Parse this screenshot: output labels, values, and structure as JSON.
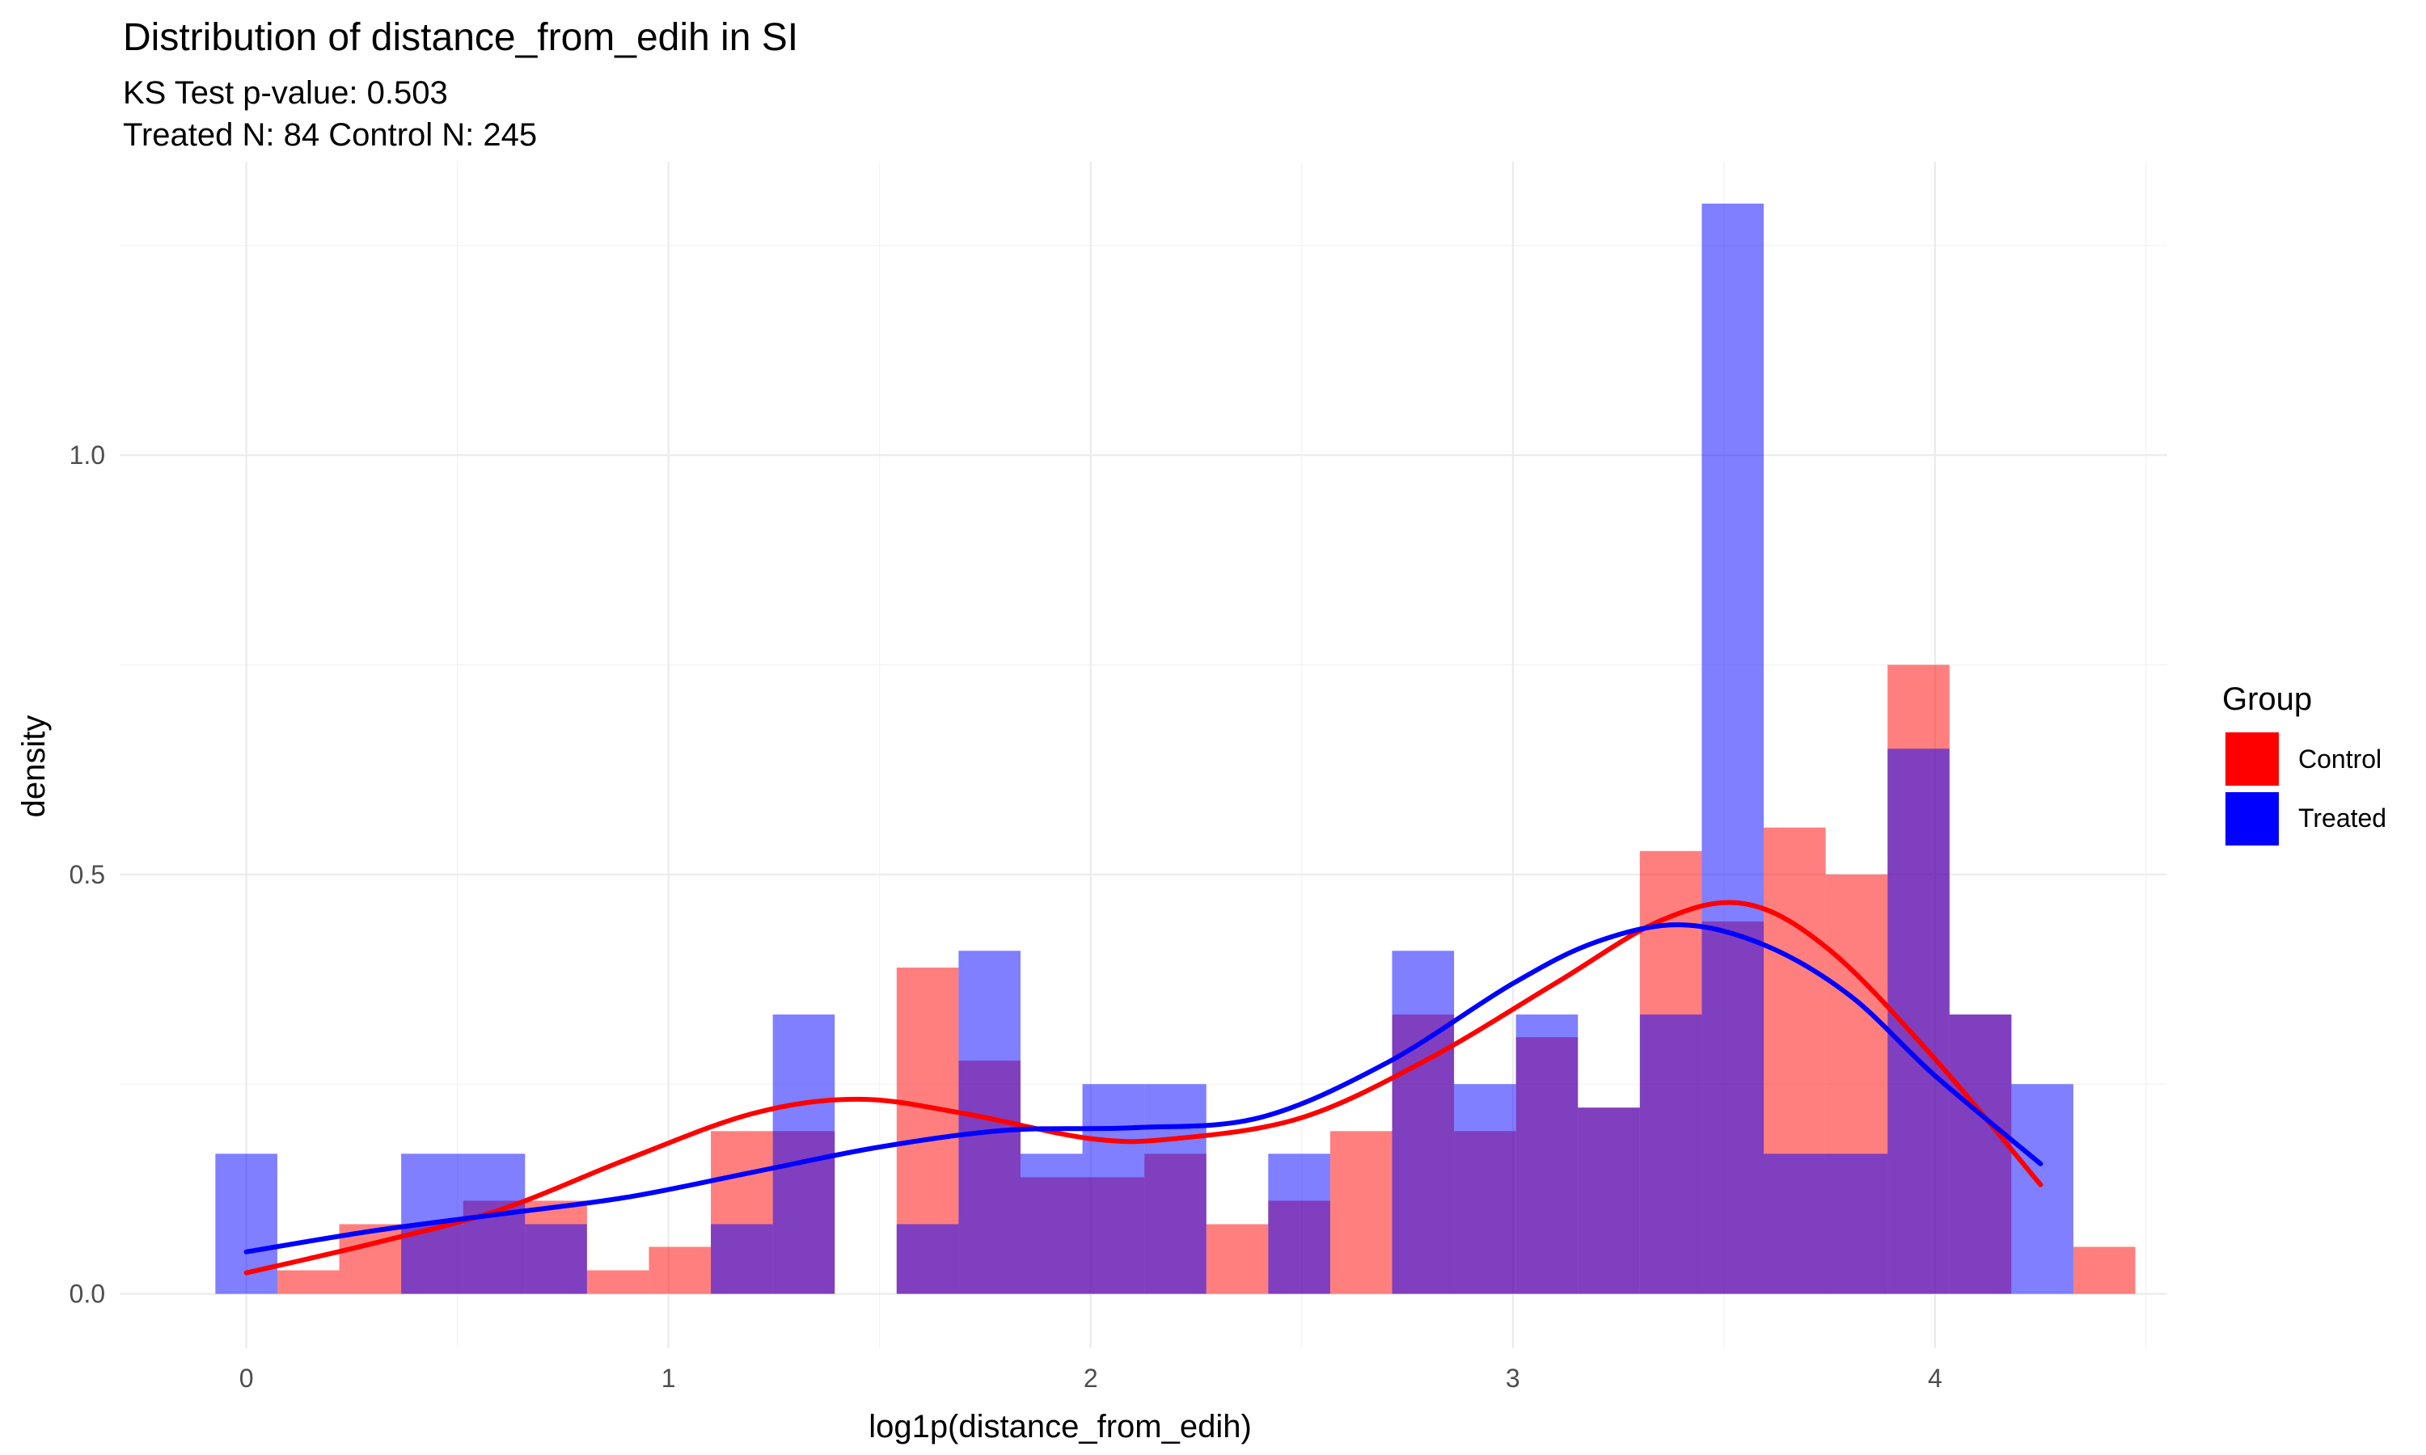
{
  "chart_data": {
    "type": "histogram",
    "title": "Distribution of distance_from_edih in SI",
    "subtitles": [
      "KS Test p-value: 0.503",
      "Treated N: 84 Control N: 245"
    ],
    "xlabel": "log1p(distance_from_edih)",
    "ylabel": "density",
    "xlim": [
      -0.3,
      4.55
    ],
    "ylim": [
      -0.065,
      1.35
    ],
    "x_ticks": [
      0,
      1,
      2,
      3,
      4
    ],
    "x_tick_labels": [
      "0",
      "1",
      "2",
      "3",
      "4"
    ],
    "y_ticks": [
      0.0,
      0.5,
      1.0
    ],
    "y_tick_labels": [
      "0.0",
      "0.5",
      "1.0"
    ],
    "grid": true,
    "legend": {
      "title": "Group",
      "position": "right"
    },
    "bin_width": 0.1467,
    "bin_start": -0.0733,
    "series": [
      {
        "name": "Control",
        "color": "#ff0000",
        "bin_densities": [
          0.0,
          0.028,
          0.083,
          0.083,
          0.111,
          0.111,
          0.028,
          0.056,
          0.194,
          0.194,
          0.0,
          0.389,
          0.278,
          0.139,
          0.139,
          0.167,
          0.083,
          0.111,
          0.194,
          0.333,
          0.194,
          0.306,
          0.222,
          0.528,
          0.444,
          0.556,
          0.5,
          0.75,
          0.333,
          0.0,
          0.056
        ],
        "density_curve": {
          "x": [
            0,
            0.3,
            0.6,
            0.9,
            1.2,
            1.45,
            1.7,
            2.0,
            2.2,
            2.5,
            2.8,
            3.1,
            3.35,
            3.55,
            3.75,
            4.0,
            4.25
          ],
          "y": [
            0.025,
            0.06,
            0.1,
            0.16,
            0.215,
            0.232,
            0.215,
            0.185,
            0.185,
            0.21,
            0.28,
            0.37,
            0.445,
            0.465,
            0.41,
            0.28,
            0.13
          ]
        }
      },
      {
        "name": "Treated",
        "color": "#0000ff",
        "bin_densities": [
          0.167,
          0.0,
          0.0,
          0.167,
          0.167,
          0.083,
          0.0,
          0.0,
          0.083,
          0.333,
          0.0,
          0.083,
          0.409,
          0.167,
          0.25,
          0.25,
          0.0,
          0.167,
          0.0,
          0.409,
          0.25,
          0.333,
          0.222,
          0.333,
          1.3,
          0.167,
          0.167,
          0.65,
          0.333,
          0.25,
          0.0
        ],
        "density_curve": {
          "x": [
            0,
            0.3,
            0.6,
            0.9,
            1.2,
            1.5,
            1.8,
            2.1,
            2.4,
            2.7,
            3.0,
            3.2,
            3.4,
            3.6,
            3.8,
            4.0,
            4.25
          ],
          "y": [
            0.05,
            0.075,
            0.095,
            0.115,
            0.145,
            0.175,
            0.195,
            0.198,
            0.21,
            0.275,
            0.37,
            0.42,
            0.44,
            0.415,
            0.355,
            0.26,
            0.155
          ]
        }
      }
    ]
  }
}
